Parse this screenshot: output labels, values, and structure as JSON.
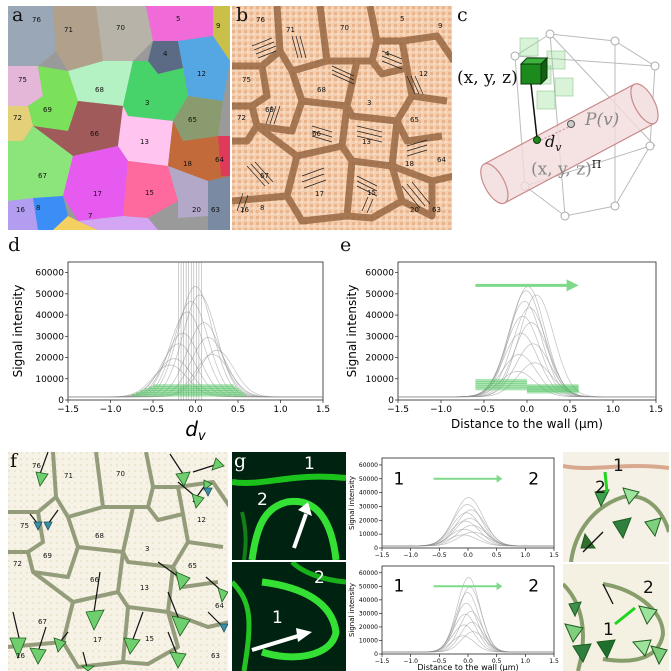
{
  "panel_labels": {
    "a": "a",
    "b": "b",
    "c": "c",
    "d": "d",
    "e": "e",
    "f": "f",
    "g": "g"
  },
  "colors": {
    "green": "#4cc25a",
    "light_green": "#7fd98a",
    "gray_trace": "#8c8c8c",
    "cell_wall": "#6e5a3a"
  },
  "panel_a": {
    "cell_ids": [
      "76",
      "71",
      "70",
      "5",
      "9",
      "4",
      "12",
      "75",
      "69",
      "68",
      "3",
      "65",
      "72",
      "66",
      "13",
      "64",
      "18",
      "67",
      "17",
      "15",
      "16",
      "8",
      "7",
      "20",
      "63"
    ]
  },
  "panel_b": {
    "cell_ids": [
      "76",
      "71",
      "70",
      "5",
      "9",
      "4",
      "12",
      "75",
      "69",
      "68",
      "3",
      "65",
      "72",
      "66",
      "13",
      "64",
      "18",
      "67",
      "17",
      "15",
      "16",
      "8",
      "20",
      "63"
    ]
  },
  "panel_c": {
    "point_label": "(x, y, z)",
    "projection_label": "(x, y, z)",
    "projection_superscript": "Π",
    "distance_label": "d",
    "distance_subscript": "v",
    "line_label": "P(v)"
  },
  "panel_f": {
    "cell_ids": [
      "76",
      "71",
      "70",
      "75",
      "12",
      "69",
      "68",
      "3",
      "72",
      "66",
      "13",
      "65",
      "64",
      "67",
      "17",
      "15",
      "16",
      "63"
    ]
  },
  "panel_g": {
    "top": {
      "label1": "1",
      "label2": "2"
    },
    "bottom": {
      "label1": "1",
      "label2": "2"
    }
  },
  "chart_data": [
    {
      "id": "d",
      "type": "line",
      "title": "",
      "xlabel": "d",
      "xlabel_subscript": "v",
      "ylabel": "Signal intensity",
      "xlim": [
        -1.5,
        1.5
      ],
      "ylim": [
        0,
        65000
      ],
      "x_ticks": [
        "−1.5",
        "−1.0",
        "−0.5",
        "0.0",
        "0.5",
        "1.0",
        "1.5"
      ],
      "y_ticks": [
        "0",
        "10000",
        "20000",
        "30000",
        "40000",
        "50000",
        "60000"
      ],
      "series": [
        {
          "peak_positions": [
            -0.3,
            -0.2,
            -0.1,
            0.0,
            0.1,
            0.2,
            -0.15,
            -0.05,
            0.05,
            0.15,
            -0.25,
            0.25
          ],
          "peak_heights": [
            15000,
            25000,
            40000,
            52000,
            35000,
            20000,
            30000,
            45000,
            48000,
            28000,
            18000,
            22000
          ],
          "width_sd": 0.2
        }
      ],
      "green_bars": {
        "range": [
          -0.75,
          0.6
        ],
        "value_range": [
          2000,
          6500
        ]
      }
    },
    {
      "id": "e",
      "type": "line",
      "title": "",
      "xlabel": "Distance to the wall (μm)",
      "ylabel": "Signal intensity",
      "xlim": [
        -1.5,
        1.5
      ],
      "ylim": [
        0,
        65000
      ],
      "x_ticks": [
        "−1.5",
        "−1.0",
        "−0.5",
        "0.0",
        "0.5",
        "1.0",
        "1.5"
      ],
      "y_ticks": [
        "0",
        "10000",
        "20000",
        "30000",
        "40000",
        "50000",
        "60000"
      ],
      "peak_heights": [
        12000,
        20000,
        30000,
        38000,
        45000,
        50000,
        52000,
        42000,
        35000,
        25000,
        16000,
        48000
      ],
      "width_sd": 0.2,
      "green_bars": {
        "left": [
          -0.6,
          0.0
        ],
        "right": [
          0.0,
          0.6
        ],
        "left_value": [
          5000,
          9000
        ],
        "right_value": [
          3500,
          6500
        ]
      },
      "arrow": {
        "from": -0.6,
        "to": 0.6,
        "y": 54000
      }
    },
    {
      "id": "g-top",
      "type": "line",
      "xlabel": "",
      "ylabel": "Signal intensity",
      "xlim": [
        -1.5,
        1.5
      ],
      "ylim": [
        0,
        65000
      ],
      "x_ticks": [
        "−1.5",
        "−1.0",
        "−0.5",
        "0.0",
        "0.5",
        "1.0",
        "1.5"
      ],
      "y_ticks": [
        "0",
        "10000",
        "20000",
        "30000",
        "40000",
        "50000",
        "60000"
      ],
      "peak_heights": [
        8000,
        12000,
        18000,
        24000,
        30000,
        35000,
        20000,
        26000,
        15000,
        10000
      ],
      "width_sd": 0.25,
      "label_left": "1",
      "label_right": "2"
    },
    {
      "id": "g-bottom",
      "type": "line",
      "xlabel": "Distance to the wall (μm)",
      "ylabel": "Signal intensity",
      "xlim": [
        -1.5,
        1.5
      ],
      "ylim": [
        0,
        65000
      ],
      "x_ticks": [
        "−1.5",
        "−1.0",
        "−0.5",
        "0.0",
        "0.5",
        "1.0",
        "1.5"
      ],
      "y_ticks": [
        "0",
        "10000",
        "20000",
        "30000",
        "40000",
        "50000",
        "60000"
      ],
      "peak_heights": [
        12000,
        20000,
        28000,
        36000,
        44000,
        55000,
        48000,
        30000,
        22000,
        15000
      ],
      "width_sd": 0.2,
      "label_left": "1",
      "label_right": "2"
    }
  ]
}
